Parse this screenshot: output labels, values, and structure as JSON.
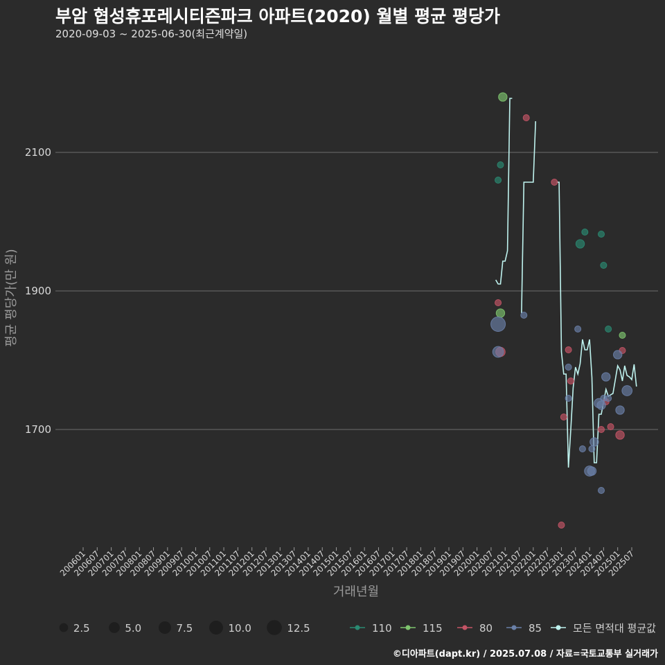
{
  "header": {
    "title": "부암 협성휴포레시티즌파크 아파트(2020) 월별 평균 평당가",
    "subtitle": "2020-09-03 ~ 2025-06-30(최근계약일)"
  },
  "footer": {
    "credit": "©디아파트(dapt.kr) / 2025.07.08 / 자료=국토교통부 실거래가"
  },
  "colors": {
    "background": "#2b2b2b",
    "grid": "#6e6e6e",
    "s110": "#2a8a72",
    "s115": "#7ec46e",
    "s80": "#c45466",
    "s85": "#6a80a8",
    "avg": "#bff3ef"
  },
  "chart_data": {
    "type": "scatter",
    "title": "부암 협성휴포레시티즌파크 아파트(2020) 월별 평균 평당가",
    "subtitle": "2020-09-03 ~ 2025-06-30(최근계약일)",
    "xlabel": "거래년월",
    "ylabel": "평균 평당가(만 원)",
    "ylim": [
      1530,
      2250
    ],
    "yticks": [
      1700,
      1900,
      2100
    ],
    "xrange": [
      "200601",
      "202507"
    ],
    "xticks": [
      "200601",
      "200607",
      "200701",
      "200707",
      "200801",
      "200807",
      "200901",
      "200907",
      "201001",
      "201007",
      "201101",
      "201107",
      "201201",
      "201207",
      "201301",
      "201307",
      "201401",
      "201407",
      "201501",
      "201507",
      "201601",
      "201607",
      "201701",
      "201707",
      "201801",
      "201807",
      "201901",
      "201907",
      "202001",
      "202007",
      "202101",
      "202107",
      "202201",
      "202207",
      "202301",
      "202307",
      "202401",
      "202407",
      "202501",
      "202507"
    ],
    "size_legend": [
      "2.5",
      "5.0",
      "7.5",
      "10.0",
      "12.5"
    ],
    "color_legend": [
      {
        "key": "s110",
        "label": "110"
      },
      {
        "key": "s115",
        "label": "115"
      },
      {
        "key": "s80",
        "label": "80"
      },
      {
        "key": "s85",
        "label": "85"
      },
      {
        "key": "avg",
        "label": "모든 면적대 평균값"
      }
    ],
    "series": [
      {
        "name": "110",
        "key": "s110",
        "points": [
          {
            "x": "202010",
            "y": 2060,
            "n": 1
          },
          {
            "x": "202011",
            "y": 2082,
            "n": 1
          },
          {
            "x": "202309",
            "y": 1968,
            "n": 3
          },
          {
            "x": "202311",
            "y": 1985,
            "n": 1
          },
          {
            "x": "202406",
            "y": 1982,
            "n": 1
          },
          {
            "x": "202407",
            "y": 1937,
            "n": 1
          },
          {
            "x": "202409",
            "y": 1845,
            "n": 1
          }
        ]
      },
      {
        "name": "115",
        "key": "s115",
        "points": [
          {
            "x": "202011",
            "y": 1868,
            "n": 3
          },
          {
            "x": "202012",
            "y": 2180,
            "n": 3
          },
          {
            "x": "202503",
            "y": 1836,
            "n": 1
          }
        ]
      },
      {
        "name": "80",
        "key": "s80",
        "points": [
          {
            "x": "202010",
            "y": 1883,
            "n": 1
          },
          {
            "x": "202011",
            "y": 1812,
            "n": 4
          },
          {
            "x": "202110",
            "y": 2150,
            "n": 1
          },
          {
            "x": "202210",
            "y": 2057,
            "n": 1
          },
          {
            "x": "202301",
            "y": 1562,
            "n": 1
          },
          {
            "x": "202302",
            "y": 1718,
            "n": 1
          },
          {
            "x": "202304",
            "y": 1815,
            "n": 1
          },
          {
            "x": "202305",
            "y": 1770,
            "n": 1
          },
          {
            "x": "202406",
            "y": 1700,
            "n": 1
          },
          {
            "x": "202408",
            "y": 1740,
            "n": 1
          },
          {
            "x": "202410",
            "y": 1704,
            "n": 1
          },
          {
            "x": "202502",
            "y": 1692,
            "n": 3
          },
          {
            "x": "202503",
            "y": 1814,
            "n": 1
          }
        ]
      },
      {
        "name": "85",
        "key": "s85",
        "points": [
          {
            "x": "202010",
            "y": 1852,
            "n": 13
          },
          {
            "x": "202010",
            "y": 1812,
            "n": 6
          },
          {
            "x": "202109",
            "y": 1865,
            "n": 1
          },
          {
            "x": "202304",
            "y": 1790,
            "n": 1
          },
          {
            "x": "202304",
            "y": 1745,
            "n": 1
          },
          {
            "x": "202308",
            "y": 1845,
            "n": 1
          },
          {
            "x": "202310",
            "y": 1672,
            "n": 1
          },
          {
            "x": "202401",
            "y": 1640,
            "n": 5
          },
          {
            "x": "202402",
            "y": 1640,
            "n": 3
          },
          {
            "x": "202402",
            "y": 1672,
            "n": 1
          },
          {
            "x": "202403",
            "y": 1682,
            "n": 3
          },
          {
            "x": "202405",
            "y": 1738,
            "n": 4
          },
          {
            "x": "202406",
            "y": 1735,
            "n": 3
          },
          {
            "x": "202406",
            "y": 1612,
            "n": 1
          },
          {
            "x": "202407",
            "y": 1745,
            "n": 1
          },
          {
            "x": "202408",
            "y": 1776,
            "n": 3
          },
          {
            "x": "202409",
            "y": 1745,
            "n": 1
          },
          {
            "x": "202501",
            "y": 1808,
            "n": 3
          },
          {
            "x": "202502",
            "y": 1728,
            "n": 3
          },
          {
            "x": "202505",
            "y": 1756,
            "n": 5
          }
        ]
      }
    ],
    "average_segments": [
      [
        [
          "202009",
          1916
        ],
        [
          "202010",
          1910
        ],
        [
          "202011",
          1910
        ],
        [
          "202012",
          1943
        ],
        [
          "202101",
          1943
        ],
        [
          "202102",
          1958
        ],
        [
          "202103",
          2178
        ],
        [
          "202104",
          2178
        ]
      ],
      [
        [
          "202108",
          1868
        ],
        [
          "202109",
          2057
        ],
        [
          "202110",
          2057
        ],
        [
          "202111",
          2057
        ],
        [
          "202112",
          2057
        ],
        [
          "202201",
          2057
        ],
        [
          "202202",
          2145
        ]
      ],
      [
        [
          "202211",
          2057
        ],
        [
          "202212",
          2057
        ],
        [
          "202301",
          1812
        ],
        [
          "202302",
          1780
        ],
        [
          "202303",
          1780
        ],
        [
          "202304",
          1645
        ],
        [
          "202305",
          1700
        ],
        [
          "202306",
          1760
        ],
        [
          "202307",
          1790
        ],
        [
          "202308",
          1780
        ],
        [
          "202309",
          1795
        ],
        [
          "202310",
          1830
        ],
        [
          "202311",
          1815
        ],
        [
          "202312",
          1815
        ],
        [
          "202401",
          1830
        ],
        [
          "202402",
          1775
        ],
        [
          "202403",
          1652
        ],
        [
          "202404",
          1652
        ],
        [
          "202405",
          1722
        ],
        [
          "202406",
          1722
        ],
        [
          "202407",
          1740
        ],
        [
          "202408",
          1758
        ],
        [
          "202409",
          1748
        ],
        [
          "202410",
          1750
        ],
        [
          "202411",
          1752
        ],
        [
          "202412",
          1772
        ],
        [
          "202501",
          1792
        ],
        [
          "202502",
          1786
        ],
        [
          "202503",
          1770
        ],
        [
          "202504",
          1792
        ],
        [
          "202505",
          1778
        ],
        [
          "202506",
          1776
        ],
        [
          "202507",
          1772
        ],
        [
          "202508",
          1794
        ],
        [
          "202509",
          1762
        ]
      ]
    ]
  }
}
